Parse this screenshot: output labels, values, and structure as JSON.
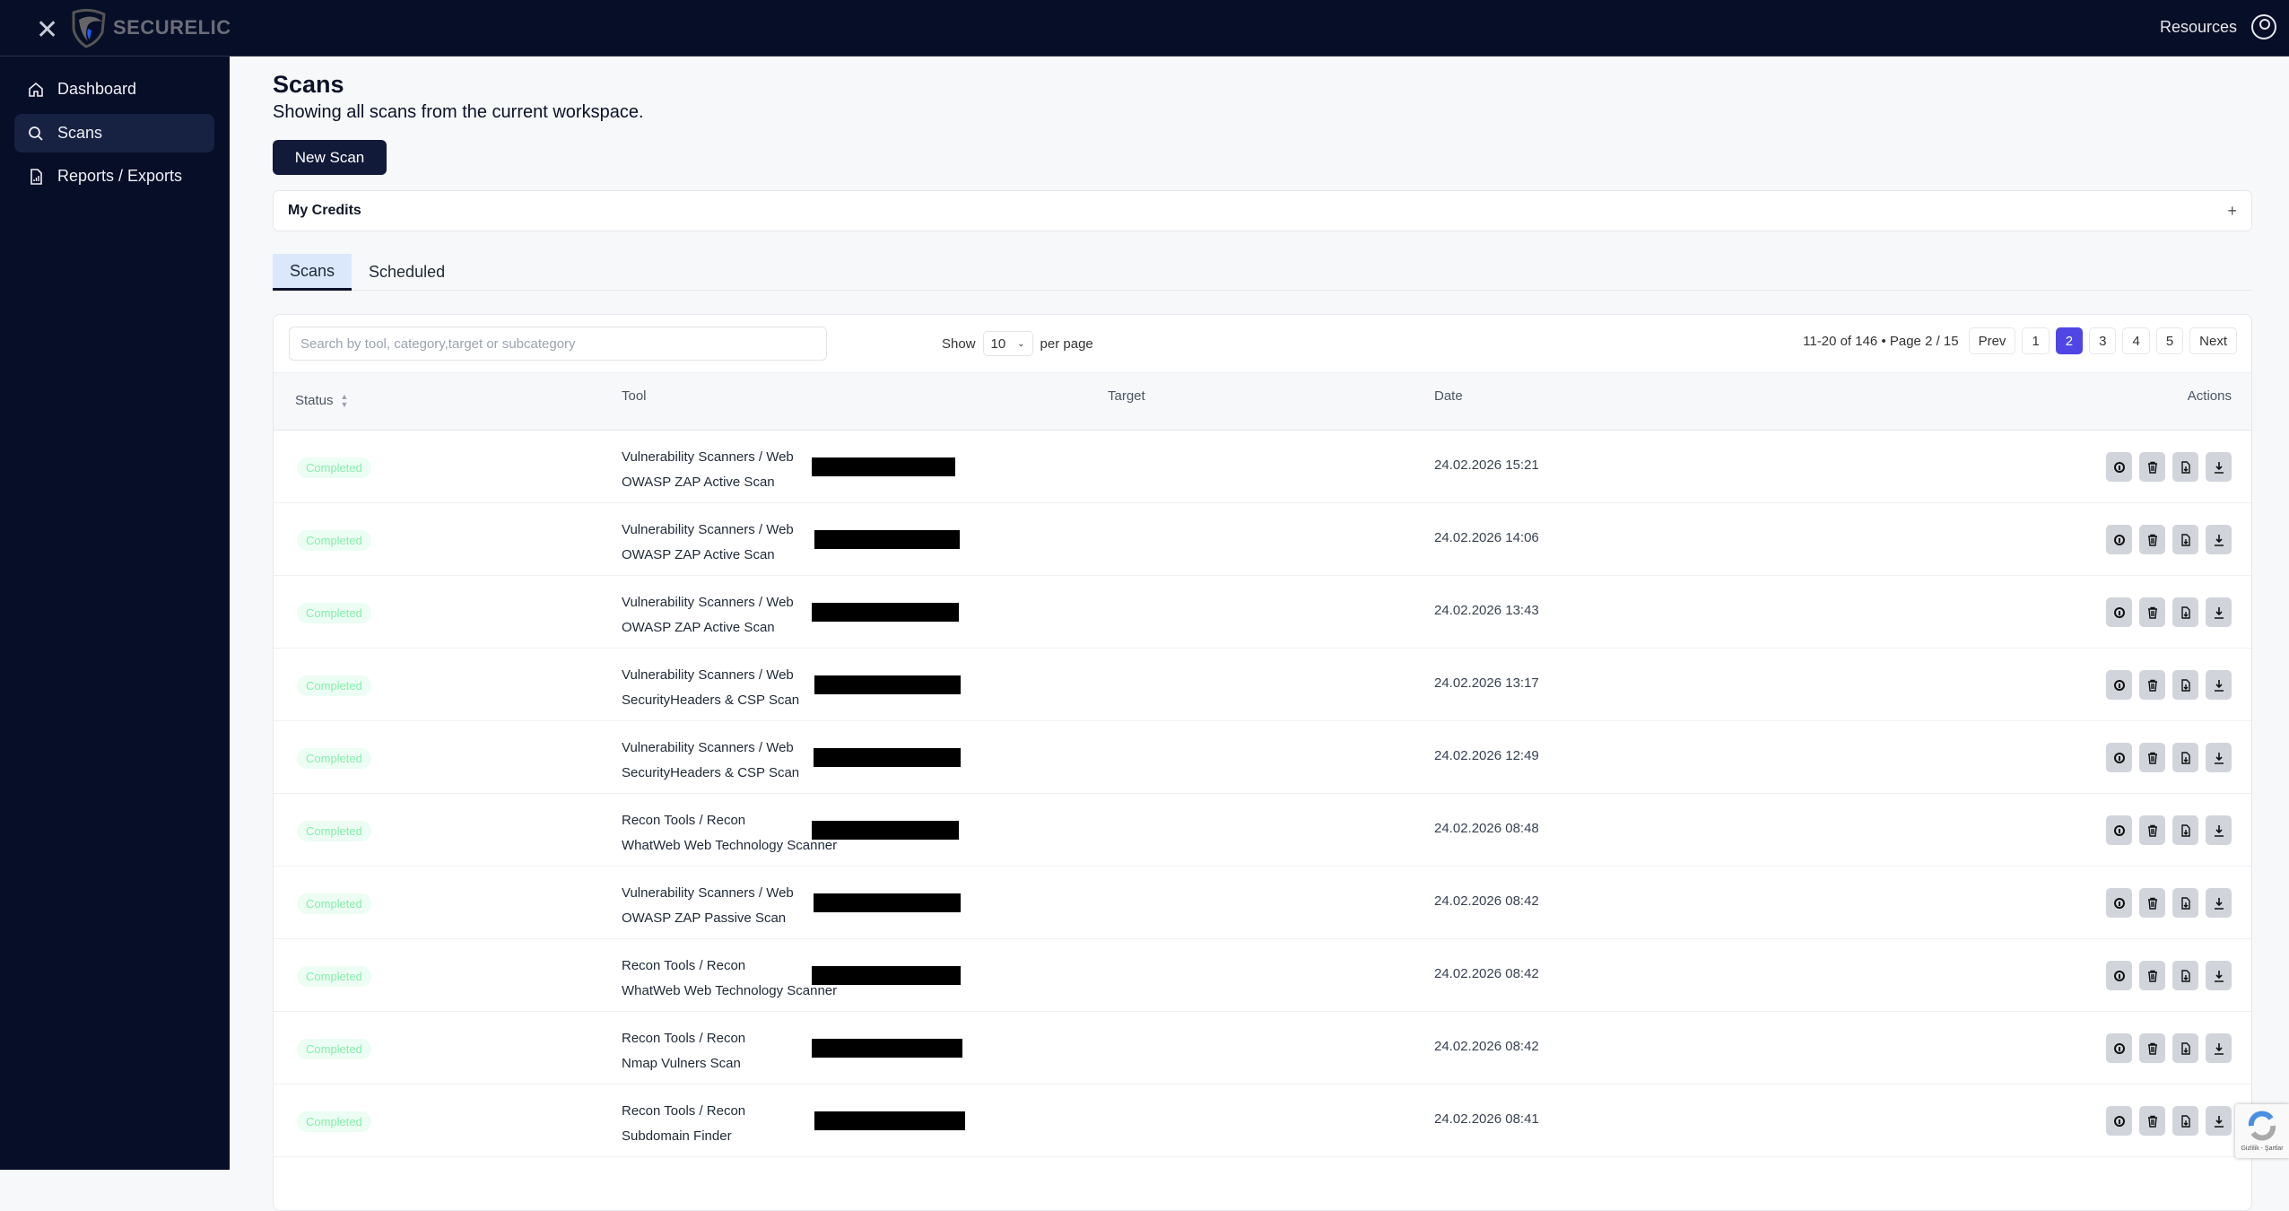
{
  "app": {
    "brand": "SECURELIC",
    "resources": "Resources"
  },
  "sidebar": {
    "items": [
      {
        "label": "Dashboard",
        "icon": "home-icon"
      },
      {
        "label": "Scans",
        "icon": "search-icon",
        "active": true
      },
      {
        "label": "Reports / Exports",
        "icon": "report-icon"
      }
    ]
  },
  "page": {
    "title": "Scans",
    "subtitle": "Showing all scans from the current workspace.",
    "new_scan": "New Scan",
    "credits": "My Credits",
    "credits_toggle": "+"
  },
  "tabs": [
    {
      "label": "Scans",
      "active": true
    },
    {
      "label": "Scheduled"
    }
  ],
  "toolbar": {
    "search_placeholder": "Search by tool, category,target or subcategory",
    "show": "Show",
    "per_page_value": "10",
    "per_page": "per page"
  },
  "pagination": {
    "info": "11-20 of 146 • Page 2 / 15",
    "prev": "Prev",
    "pages": [
      "1",
      "2",
      "3",
      "4",
      "5"
    ],
    "current": "2",
    "next": "Next"
  },
  "table": {
    "headers": {
      "status": "Status",
      "tool": "Tool",
      "target": "Target",
      "date": "Date",
      "actions": "Actions"
    },
    "rows": [
      {
        "status": "Completed",
        "category": "Vulnerability Scanners / Web",
        "tool": "OWASP ZAP Active Scan",
        "date": "24.02.2026 15:21"
      },
      {
        "status": "Completed",
        "category": "Vulnerability Scanners / Web",
        "tool": "OWASP ZAP Active Scan",
        "date": "24.02.2026 14:06"
      },
      {
        "status": "Completed",
        "category": "Vulnerability Scanners / Web",
        "tool": "OWASP ZAP Active Scan",
        "date": "24.02.2026 13:43"
      },
      {
        "status": "Completed",
        "category": "Vulnerability Scanners / Web",
        "tool": "SecurityHeaders & CSP Scan",
        "date": "24.02.2026 13:17"
      },
      {
        "status": "Completed",
        "category": "Vulnerability Scanners / Web",
        "tool": "SecurityHeaders & CSP Scan",
        "date": "24.02.2026 12:49"
      },
      {
        "status": "Completed",
        "category": "Recon Tools / Recon",
        "tool": "WhatWeb Web Technology Scanner",
        "date": "24.02.2026 08:48"
      },
      {
        "status": "Completed",
        "category": "Vulnerability Scanners / Web",
        "tool": "OWASP ZAP Passive Scan",
        "date": "24.02.2026 08:42"
      },
      {
        "status": "Completed",
        "category": "Recon Tools / Recon",
        "tool": "WhatWeb Web Technology Scanner",
        "date": "24.02.2026 08:42"
      },
      {
        "status": "Completed",
        "category": "Recon Tools / Recon",
        "tool": "Nmap Vulners Scan",
        "date": "24.02.2026 08:42"
      },
      {
        "status": "Completed",
        "category": "Recon Tools / Recon",
        "tool": "Subdomain Finder",
        "date": "24.02.2026 08:41"
      }
    ]
  },
  "recaptcha": {
    "text": "Gizlilik - Şartlar"
  },
  "colors": {
    "topbar": "#070e27",
    "accent": "#4f46e5",
    "active_nav": "#172142",
    "status_completed": "#86efac"
  }
}
